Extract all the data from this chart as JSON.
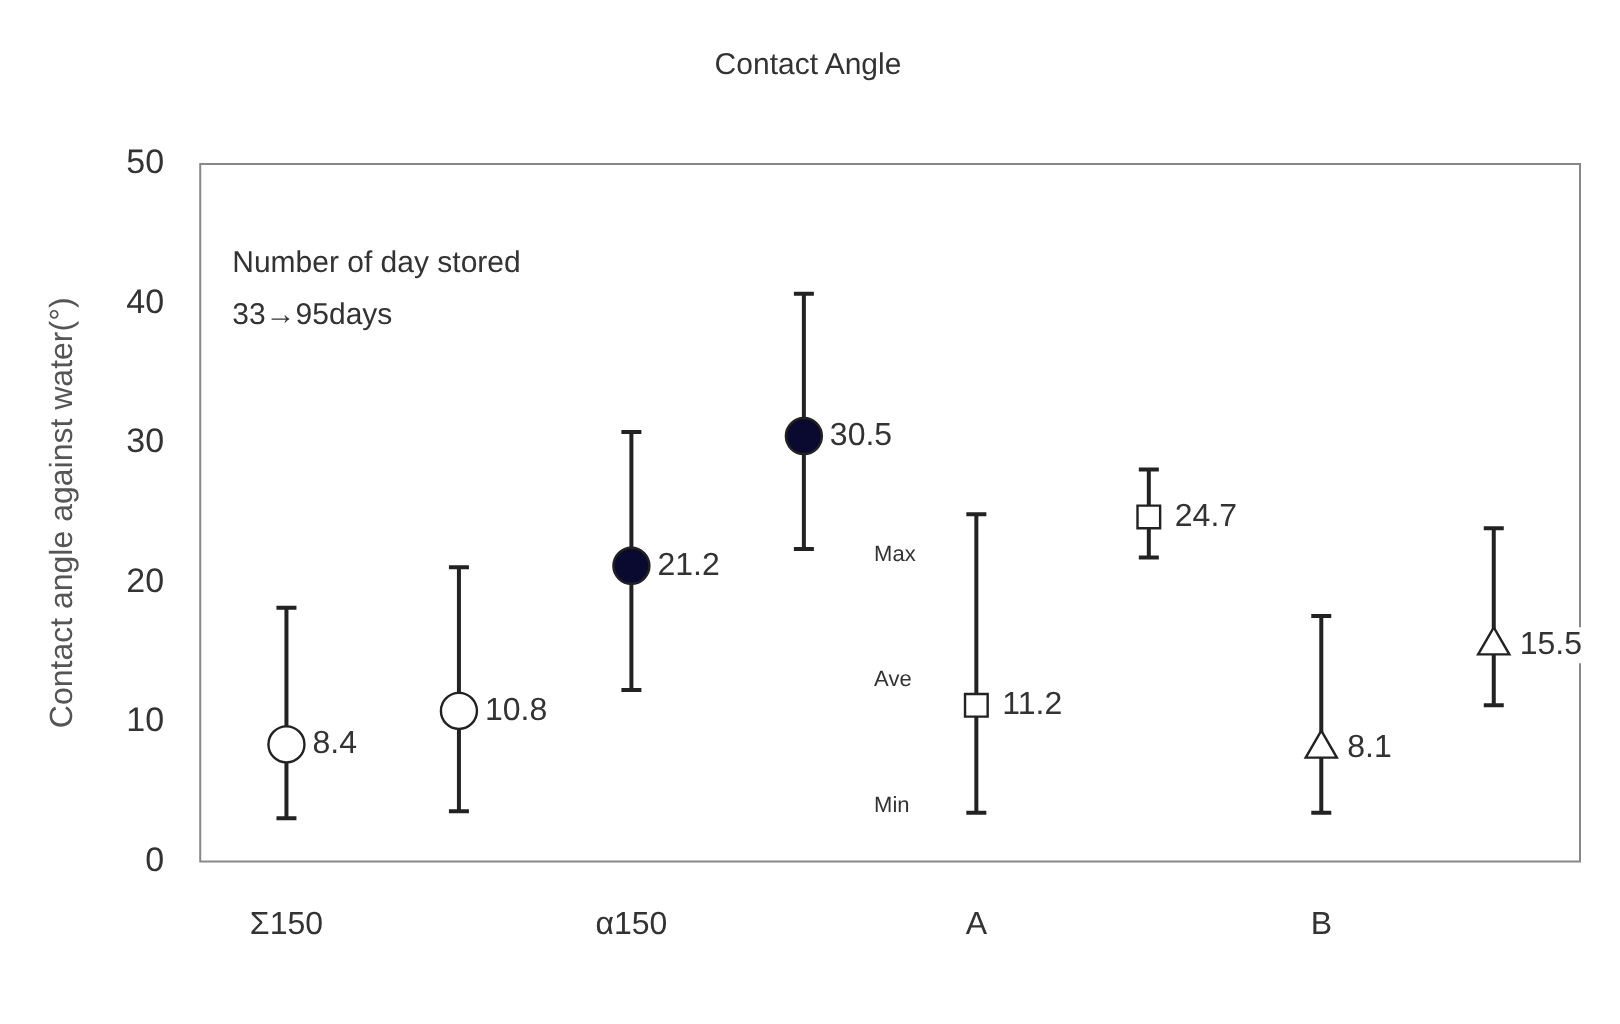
{
  "chart_data": {
    "type": "scatter",
    "title": "Contact Angle",
    "ylabel": "Contact angle against water(°)",
    "categories": [
      "Σ150",
      null,
      "α150",
      null,
      "A",
      null,
      "B",
      null
    ],
    "ylim": [
      0,
      50
    ],
    "yticks": [
      0,
      10,
      20,
      30,
      40,
      50
    ],
    "grid": false,
    "legend": false,
    "data_labels": true,
    "annotations": [
      "Number of day stored\n33→95days",
      "Max",
      "Ave",
      "Min"
    ],
    "series": [
      {
        "color": "#ffffff",
        "marker": "circle",
        "values": [
          8.4,
          10.8,
          null,
          null,
          null,
          null,
          null,
          null
        ],
        "errors": [
          [
            3.1,
            18.2
          ],
          [
            3.6,
            21.1
          ],
          null,
          null,
          null,
          null,
          null,
          null
        ]
      },
      {
        "color": "#0a0a30",
        "marker": "circle",
        "values": [
          null,
          null,
          21.2,
          30.5,
          null,
          null,
          null,
          null
        ],
        "errors": [
          null,
          null,
          [
            12.3,
            30.8
          ],
          [
            22.4,
            40.7
          ],
          null,
          null,
          null,
          null
        ]
      },
      {
        "color": "#ffffff",
        "marker": "square",
        "values": [
          null,
          null,
          null,
          null,
          11.2,
          24.7,
          null,
          null
        ],
        "errors": [
          null,
          null,
          null,
          null,
          [
            3.5,
            24.9
          ],
          [
            21.8,
            28.1
          ],
          null,
          null
        ]
      },
      {
        "color": "#ffffff",
        "marker": "triangle",
        "values": [
          null,
          null,
          null,
          null,
          null,
          null,
          8.1,
          15.5
        ],
        "errors": [
          null,
          null,
          null,
          null,
          null,
          null,
          [
            3.5,
            17.6
          ],
          [
            11.2,
            23.9
          ]
        ]
      }
    ]
  }
}
